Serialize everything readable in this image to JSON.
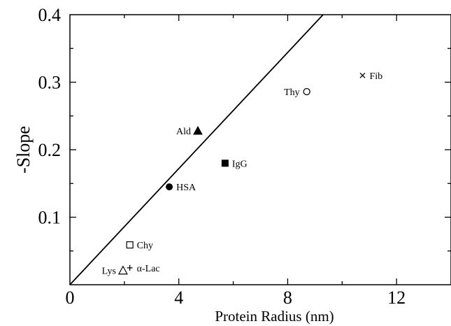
{
  "chart_data": {
    "type": "scatter",
    "xlabel": "Protein Radius (nm)",
    "ylabel": "-Slope",
    "xlim": [
      0,
      14
    ],
    "ylim": [
      0,
      0.4
    ],
    "x_ticks": [
      0,
      4,
      8,
      12
    ],
    "x_tick_labels": [
      "0",
      "4",
      "8",
      "12"
    ],
    "y_ticks": [
      0.1,
      0.2,
      0.3,
      0.4
    ],
    "y_tick_labels": [
      "0.1",
      "0.2",
      "0.3",
      "0.4"
    ],
    "grid": false,
    "points": [
      {
        "label": "Lys",
        "x": 1.95,
        "y": 0.021,
        "marker": "triangle-open",
        "label_side": "left"
      },
      {
        "label": "α-Lac",
        "x": 2.2,
        "y": 0.025,
        "marker": "plus",
        "label_side": "right"
      },
      {
        "label": "Chy",
        "x": 2.2,
        "y": 0.059,
        "marker": "square-open",
        "label_side": "right"
      },
      {
        "label": "HSA",
        "x": 3.65,
        "y": 0.145,
        "marker": "circle-filled",
        "label_side": "right"
      },
      {
        "label": "Ald",
        "x": 4.7,
        "y": 0.228,
        "marker": "triangle-filled",
        "label_side": "left"
      },
      {
        "label": "IgG",
        "x": 5.7,
        "y": 0.18,
        "marker": "square-filled",
        "label_side": "right"
      },
      {
        "label": "Thy",
        "x": 8.7,
        "y": 0.286,
        "marker": "circle-open",
        "label_side": "left"
      },
      {
        "label": "Fib",
        "x": 10.75,
        "y": 0.31,
        "marker": "cross",
        "label_side": "right"
      }
    ],
    "reference_line": {
      "x": [
        0,
        9.3
      ],
      "y": [
        0,
        0.4
      ]
    }
  }
}
